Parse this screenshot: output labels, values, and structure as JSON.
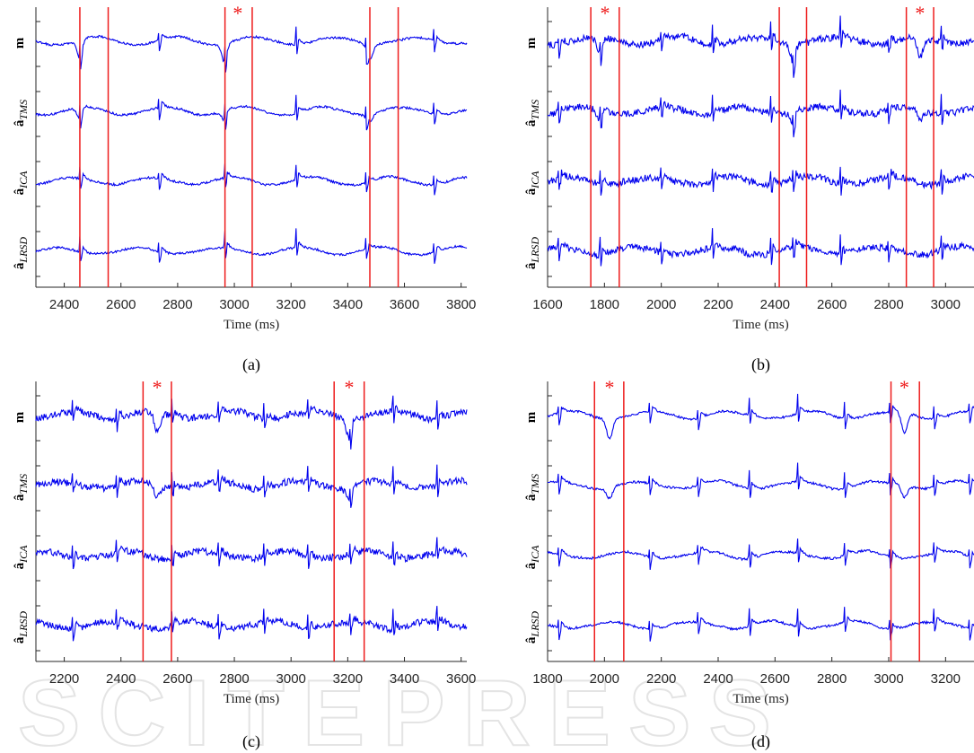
{
  "watermark_text": "SCITEPRESS",
  "chart_data": [
    {
      "type": "line",
      "caption": "(a)",
      "xlabel": "Time (ms)",
      "xlim": [
        2300,
        3820
      ],
      "xticks": [
        2400,
        2600,
        2800,
        3000,
        3200,
        3400,
        3600,
        3800
      ],
      "ylabels": [
        {
          "main": "m",
          "sub": ""
        },
        {
          "main": "â",
          "sub": "TMS"
        },
        {
          "main": "â",
          "sub": "ICA"
        },
        {
          "main": "â",
          "sub": "LRSD"
        }
      ],
      "marker_lines_x": [
        2455,
        2555,
        2967,
        3063,
        3478,
        3578
      ],
      "star_x": [
        3012
      ],
      "spike_x": [
        2456,
        2735,
        2967,
        3218,
        3465,
        3705
      ],
      "qrs_complexes": [
        2456,
        2967,
        3478
      ],
      "series_color": "#0000ee",
      "marker_color": "#ee1c1c"
    },
    {
      "type": "line",
      "caption": "(b)",
      "xlabel": "Time (ms)",
      "xlim": [
        1600,
        3100
      ],
      "xticks": [
        1600,
        1800,
        2000,
        2200,
        2400,
        2600,
        2800,
        3000
      ],
      "ylabels": [
        {
          "main": "m",
          "sub": ""
        },
        {
          "main": "â",
          "sub": "TMS"
        },
        {
          "main": "â",
          "sub": "ICA"
        },
        {
          "main": "â",
          "sub": "LRSD"
        }
      ],
      "marker_lines_x": [
        1752,
        1852,
        2415,
        2511,
        2862,
        2958
      ],
      "star_x": [
        1802,
        2910
      ],
      "spike_x": [
        1640,
        1785,
        2000,
        2180,
        2385,
        2465,
        2630,
        2800,
        2985
      ],
      "qrs_complexes": [
        1785,
        2465,
        2910
      ],
      "series_color": "#0000ee",
      "marker_color": "#ee1c1c"
    },
    {
      "type": "line",
      "caption": "(c)",
      "xlabel": "Time (ms)",
      "xlim": [
        2100,
        3620
      ],
      "xticks": [
        2200,
        2400,
        2600,
        2800,
        3000,
        3200,
        3400,
        3600
      ],
      "ylabels": [
        {
          "main": "m",
          "sub": ""
        },
        {
          "main": "â",
          "sub": "TMS"
        },
        {
          "main": "â",
          "sub": "ICA"
        },
        {
          "main": "â",
          "sub": "LRSD"
        }
      ],
      "marker_lines_x": [
        2478,
        2578,
        3152,
        3258
      ],
      "star_x": [
        2528,
        3205
      ],
      "spike_x": [
        2230,
        2385,
        2580,
        2745,
        2905,
        3060,
        3210,
        3360,
        3515
      ],
      "qrs_complexes": [
        2528,
        3205
      ],
      "series_color": "#0000ee",
      "marker_color": "#ee1c1c"
    },
    {
      "type": "line",
      "caption": "(d)",
      "xlabel": "Time (ms)",
      "xlim": [
        1800,
        3300
      ],
      "xticks": [
        1800,
        2000,
        2200,
        2400,
        2600,
        2800,
        3000,
        3200
      ],
      "ylabels": [
        {
          "main": "m",
          "sub": ""
        },
        {
          "main": "â",
          "sub": "TMS"
        },
        {
          "main": "â",
          "sub": "ICA"
        },
        {
          "main": "â",
          "sub": "LRSD"
        }
      ],
      "marker_lines_x": [
        1965,
        2068,
        3008,
        3108
      ],
      "star_x": [
        2018,
        3055
      ],
      "spike_x": [
        1840,
        2160,
        2330,
        2510,
        2680,
        2845,
        3005,
        3160,
        3285
      ],
      "qrs_complexes": [
        2018,
        3055
      ],
      "series_color": "#0000ee",
      "marker_color": "#ee1c1c"
    }
  ]
}
